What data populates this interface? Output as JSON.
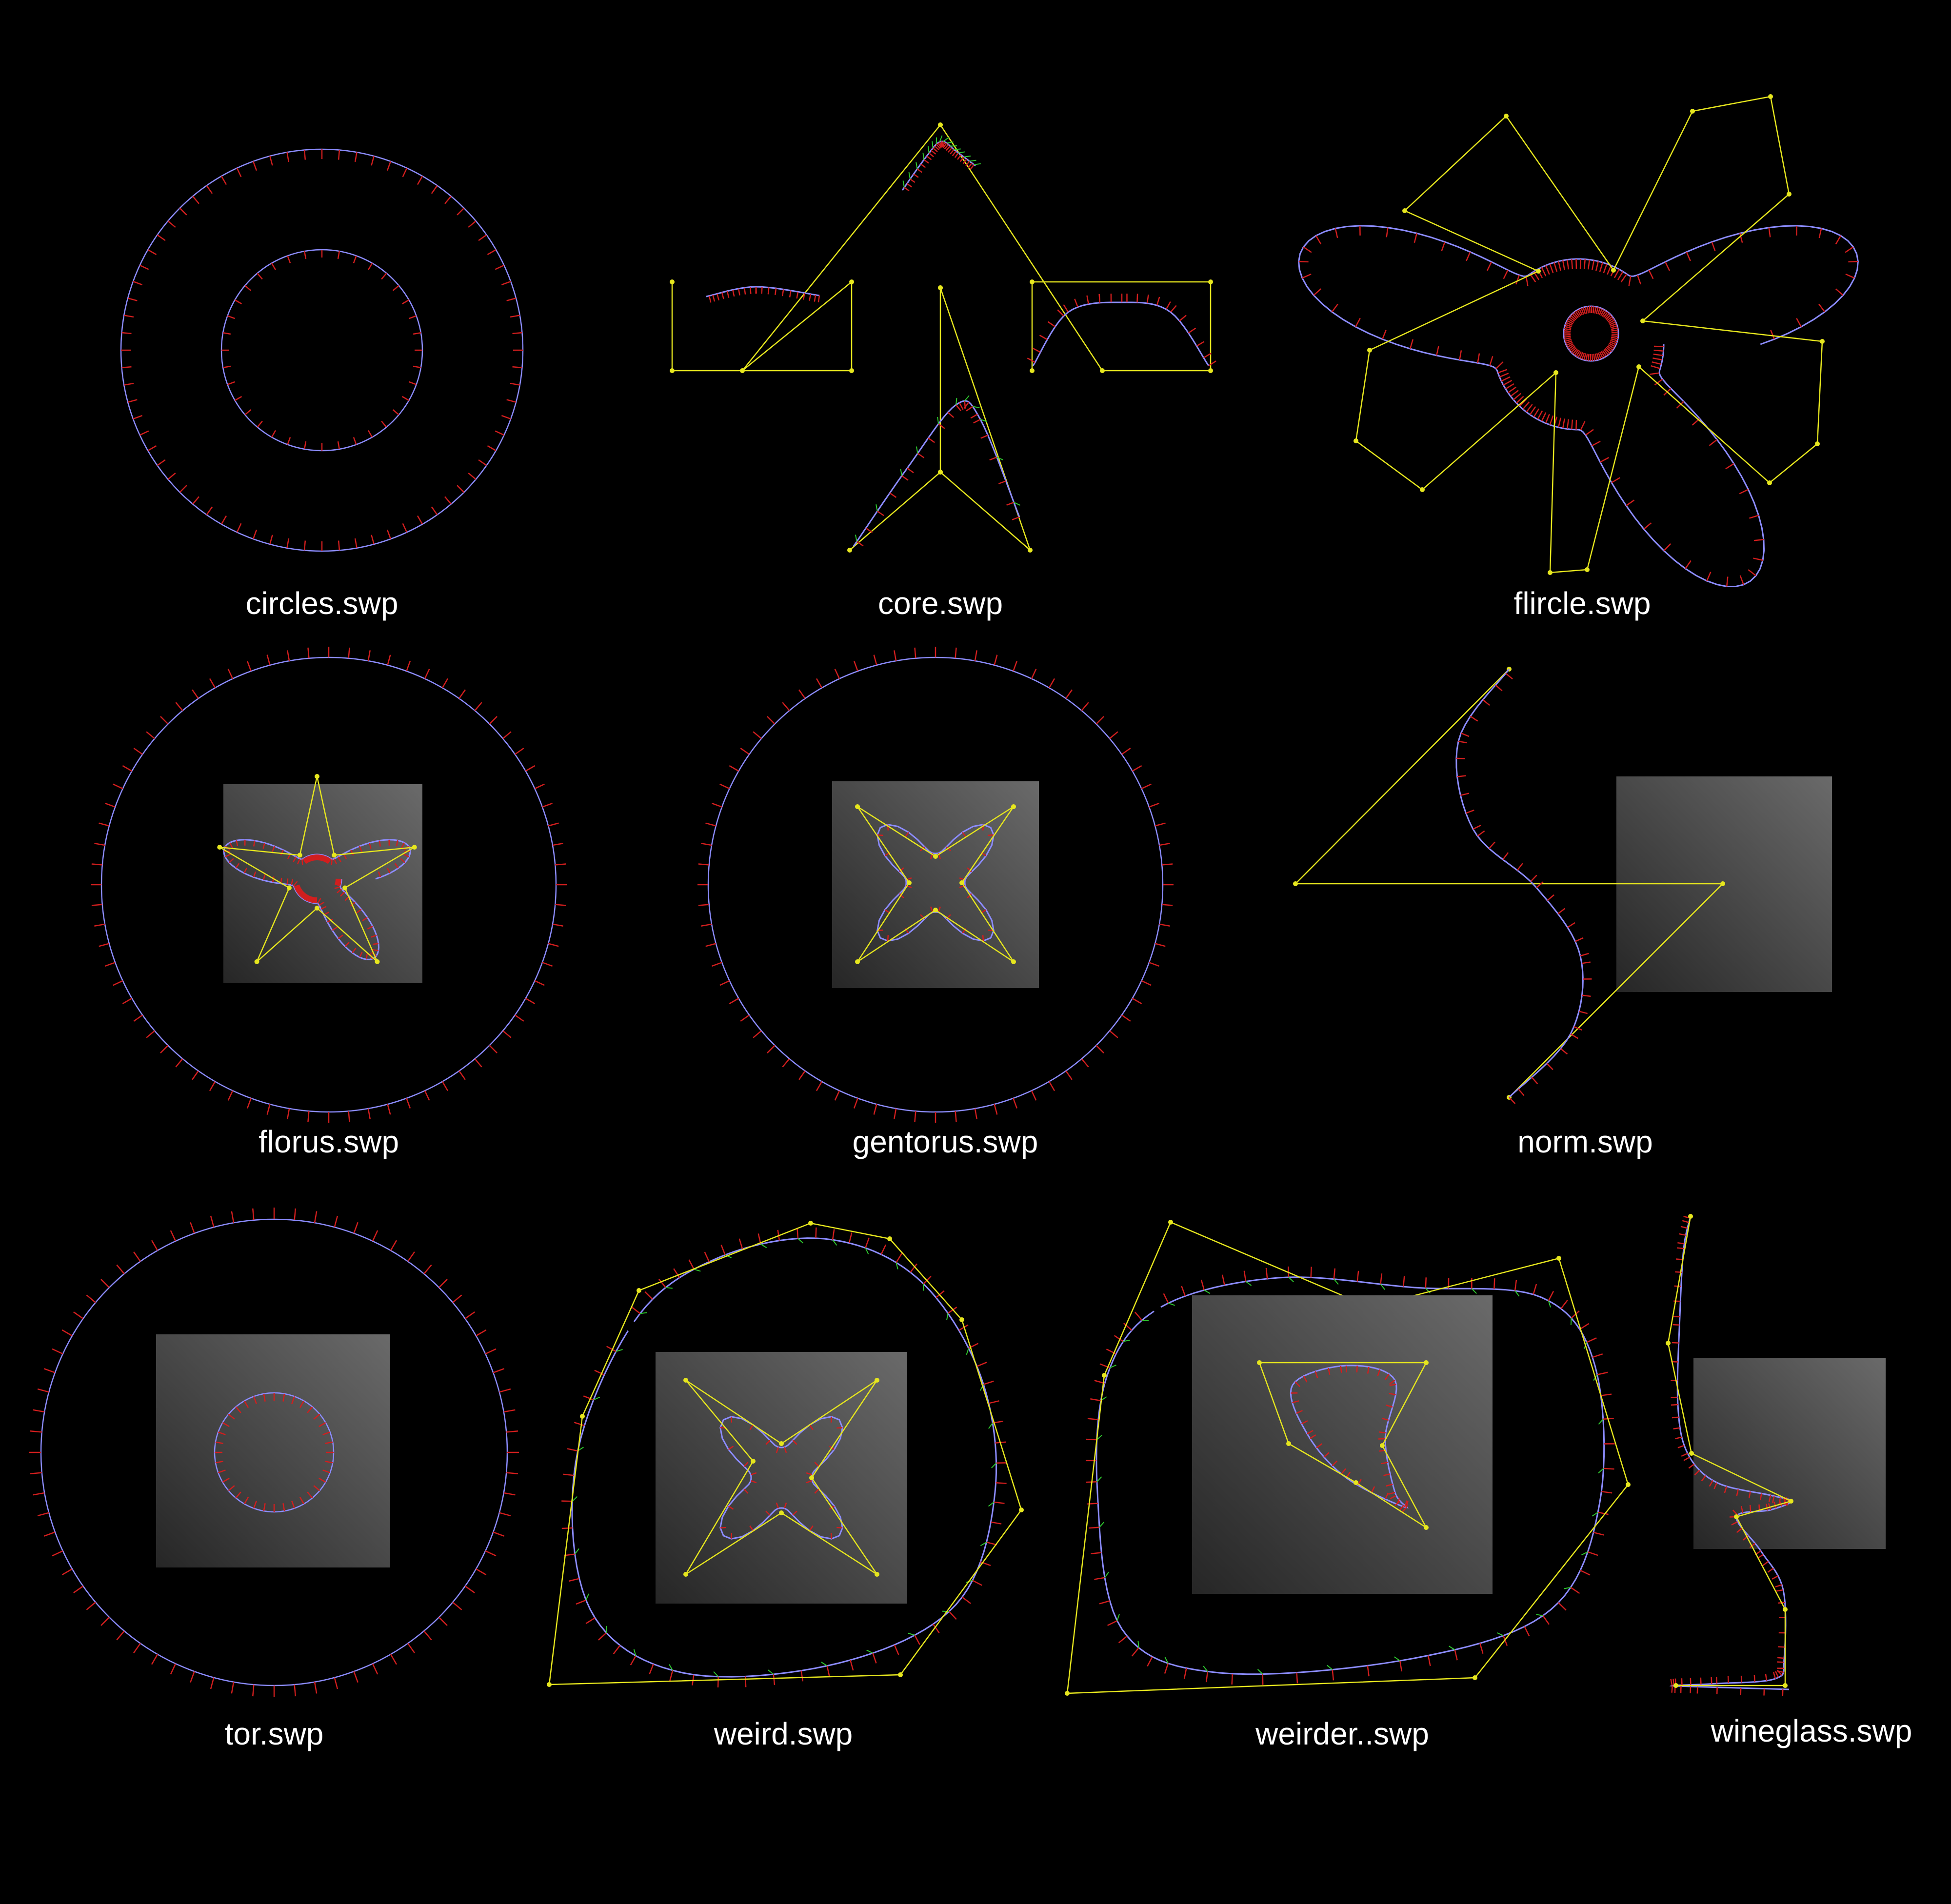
{
  "colors": {
    "background": "#000000",
    "curve": "#8c8cff",
    "normals": "#d21e1e",
    "control_polygon": "#e6e61e",
    "tangents": "#2ec82e",
    "panel_light": "#6a6a6a",
    "panel_dark": "#262626",
    "label": "#ffffff"
  },
  "thumbnails": [
    {
      "id": "circles",
      "label": "circles.swp"
    },
    {
      "id": "core",
      "label": "core.swp"
    },
    {
      "id": "flircle",
      "label": "flircle.swp"
    },
    {
      "id": "florus",
      "label": "florus.swp"
    },
    {
      "id": "gentorus",
      "label": "gentorus.swp"
    },
    {
      "id": "norm",
      "label": "norm.swp"
    },
    {
      "id": "tor",
      "label": "tor.swp"
    },
    {
      "id": "weird",
      "label": "weird.swp"
    },
    {
      "id": "weirder",
      "label": "weirder..swp"
    },
    {
      "id": "wineglass",
      "label": "wineglass.swp"
    }
  ]
}
